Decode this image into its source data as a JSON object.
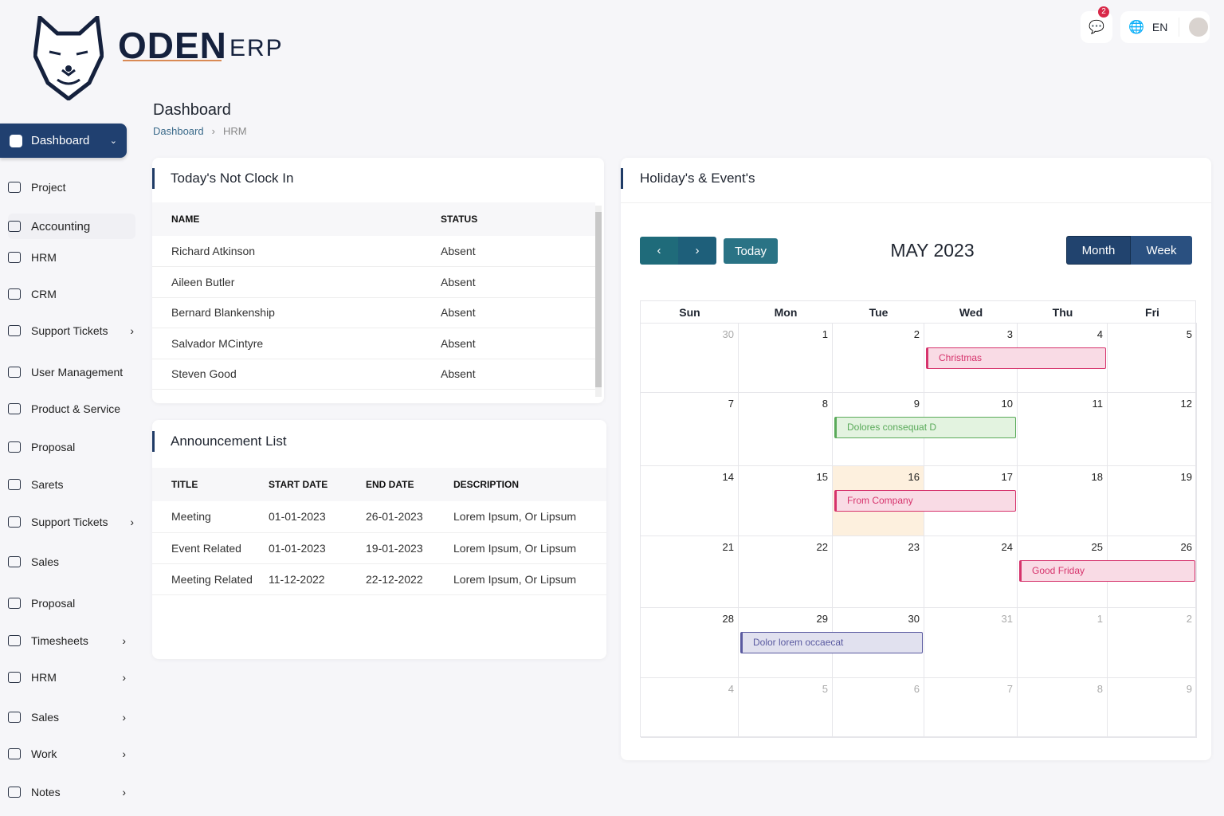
{
  "brand": {
    "name": "ODEN",
    "suffix": "ERP"
  },
  "topbar": {
    "notifications_count": "2",
    "language": "EN"
  },
  "page": {
    "title": "Dashboard",
    "breadcrumb": [
      "Dashboard",
      "HRM"
    ]
  },
  "sidebar": {
    "active": "Dashboard",
    "items": [
      {
        "label": "Project",
        "chevron": false
      },
      {
        "label": "Accounting",
        "chevron": false
      },
      {
        "label": "HRM",
        "chevron": false
      },
      {
        "label": "CRM",
        "chevron": false
      },
      {
        "label": "Support Tickets",
        "chevron": true
      },
      {
        "label": "User Management",
        "chevron": false
      },
      {
        "label": "Product & Service",
        "chevron": false
      },
      {
        "label": "Proposal",
        "chevron": false
      },
      {
        "label": "Sarets",
        "chevron": false
      },
      {
        "label": "Support Tickets",
        "chevron": true
      },
      {
        "label": "Sales",
        "chevron": false
      },
      {
        "label": "Proposal",
        "chevron": false
      },
      {
        "label": "Timesheets",
        "chevron": true
      },
      {
        "label": "HRM",
        "chevron": true
      },
      {
        "label": "Sales",
        "chevron": true
      },
      {
        "label": "Work",
        "chevron": true
      },
      {
        "label": "Notes",
        "chevron": true
      }
    ]
  },
  "clock_in": {
    "title": "Today's Not Clock In",
    "columns": [
      "NAME",
      "STATUS"
    ],
    "rows": [
      [
        "Richard Atkinson",
        "Absent"
      ],
      [
        "Aileen Butler",
        "Absent"
      ],
      [
        "Bernard Blankenship",
        "Absent"
      ],
      [
        "Salvador MCintyre",
        "Absent"
      ],
      [
        "Steven Good",
        "Absent"
      ]
    ]
  },
  "announcements": {
    "title": "Announcement List",
    "columns": [
      "TITLE",
      "START DATE",
      "END DATE",
      "DESCRIPTION"
    ],
    "rows": [
      [
        "Meeting",
        "01-01-2023",
        "26-01-2023",
        "Lorem Ipsum, Or Lipsum"
      ],
      [
        "Event Related",
        "01-01-2023",
        "19-01-2023",
        "Lorem Ipsum, Or Lipsum"
      ],
      [
        "Meeting Related",
        "11-12-2022",
        "22-12-2022",
        "Lorem Ipsum, Or Lipsum"
      ]
    ]
  },
  "calendar": {
    "title": "Holiday's & Event's",
    "month_label": "MAY 2023",
    "today_label": "Today",
    "view_month": "Month",
    "view_week": "Week",
    "days": [
      "Sun",
      "Mon",
      "Tue",
      "Wed",
      "Thu",
      "Fri"
    ],
    "weeks": [
      [
        "30",
        "1",
        "2",
        "3",
        "4",
        "5"
      ],
      [
        "7",
        "8",
        "9",
        "10",
        "11",
        "12"
      ],
      [
        "14",
        "15",
        "16",
        "17",
        "18",
        "19"
      ],
      [
        "21",
        "22",
        "23",
        "24",
        "25",
        "26"
      ],
      [
        "28",
        "29",
        "30",
        "31",
        "1",
        "2"
      ],
      [
        "4",
        "5",
        "6",
        "7",
        "8",
        "9"
      ]
    ],
    "today": "16",
    "events": [
      {
        "title": "Christmas",
        "week": 0,
        "start": 3,
        "span": 2,
        "color": "#d6336c"
      },
      {
        "title": "Dolores consequat D",
        "week": 1,
        "start": 2,
        "span": 2,
        "color": "#5aaa5a"
      },
      {
        "title": "From Company",
        "week": 2,
        "start": 2,
        "span": 2,
        "color": "#d6336c"
      },
      {
        "title": "Good Friday",
        "week": 3,
        "start": 4,
        "span": 2,
        "color": "#d6336c"
      },
      {
        "title": "Dolor lorem occaecat",
        "week": 4,
        "start": 1,
        "span": 2,
        "color": "#5a5aa0"
      }
    ]
  }
}
